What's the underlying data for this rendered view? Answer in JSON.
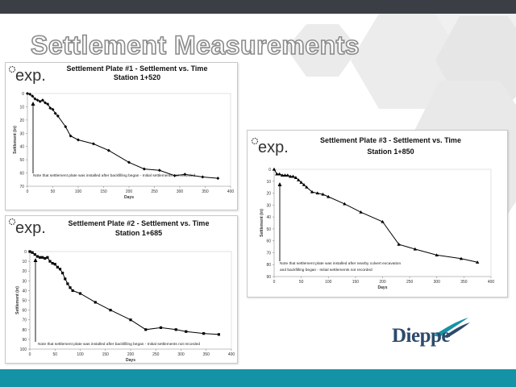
{
  "slide": {
    "title": "Settlement Measurements",
    "brand": "Dieppe",
    "colors": {
      "topbar": "#3b3f45",
      "bottombar": "#1593a6",
      "series": "#000000",
      "brand": "#2d4a6b"
    }
  },
  "chart_data": [
    {
      "type": "line",
      "id": "p1",
      "logo_text": "exp.",
      "title": "Settlement Plate #1 - Settlement vs. Time",
      "subtitle": "Station 1+520",
      "xlabel": "Days",
      "ylabel": "Settlement (in)",
      "xlim": [
        0,
        400
      ],
      "ylim": [
        0,
        70
      ],
      "y_inverted": true,
      "xticks": [
        0,
        50,
        100,
        150,
        200,
        250,
        300,
        350,
        400
      ],
      "yticks": [
        0,
        10,
        20,
        30,
        40,
        50,
        60,
        70
      ],
      "grid": false,
      "marker": "diamond",
      "annotation": [
        "Note that settlement plate was installed after backfilling began - Initial settlements not recorded"
      ],
      "series": [
        {
          "x": [
            0,
            5,
            10,
            15,
            20,
            25,
            30,
            35,
            40,
            45,
            50,
            55,
            60,
            75,
            85,
            100,
            130,
            160,
            200,
            230,
            260,
            290,
            310,
            345,
            375
          ],
          "y": [
            0,
            0.5,
            2,
            4,
            5,
            6,
            5,
            7,
            8,
            11,
            12,
            15,
            17,
            25,
            32,
            35,
            38,
            43,
            52,
            57,
            58,
            62,
            61,
            63,
            64
          ]
        }
      ]
    },
    {
      "type": "line",
      "id": "p2",
      "logo_text": "exp.",
      "title": "Settlement Plate #2 - Settlement vs. Time",
      "subtitle": "Station 1+685",
      "xlabel": "Days",
      "ylabel": "Settlement (in)",
      "xlim": [
        0,
        400
      ],
      "ylim": [
        0,
        100
      ],
      "y_inverted": true,
      "xticks": [
        0,
        50,
        100,
        150,
        200,
        250,
        300,
        350,
        400
      ],
      "yticks": [
        0,
        10,
        20,
        30,
        40,
        50,
        60,
        70,
        80,
        90,
        100
      ],
      "grid": false,
      "marker": "square",
      "annotation": [
        "Note that settlement plate was installed after backfilling began - Initial settlements not recorded"
      ],
      "series": [
        {
          "x": [
            0,
            5,
            10,
            15,
            20,
            25,
            30,
            35,
            40,
            45,
            50,
            55,
            60,
            65,
            70,
            75,
            80,
            85,
            100,
            130,
            160,
            200,
            230,
            260,
            290,
            310,
            345,
            375
          ],
          "y": [
            0,
            1,
            3,
            5,
            6,
            6,
            7,
            6,
            10,
            12,
            13,
            16,
            18,
            22,
            28,
            33,
            37,
            40,
            43,
            52,
            60,
            70,
            80,
            78,
            80,
            82,
            84,
            85
          ]
        }
      ]
    },
    {
      "type": "line",
      "id": "p3",
      "logo_text": "exp.",
      "title": "Settlement Plate #3 - Settlement vs. Time",
      "subtitle": "Station 1+850",
      "xlabel": "Days",
      "ylabel": "Settlement (in)",
      "xlim": [
        0,
        400
      ],
      "ylim": [
        0,
        90
      ],
      "y_inverted": true,
      "xticks": [
        0,
        50,
        100,
        150,
        200,
        250,
        300,
        350,
        400
      ],
      "yticks": [
        0,
        10,
        20,
        30,
        40,
        50,
        60,
        70,
        80,
        90
      ],
      "grid": false,
      "marker": "triangle",
      "annotation": [
        "Note that settlement plate was installed after nearby culvert excavation",
        "and backfilling began - Initial settlements not recorded"
      ],
      "series": [
        {
          "x": [
            0,
            5,
            10,
            15,
            20,
            25,
            30,
            35,
            40,
            45,
            50,
            55,
            60,
            70,
            80,
            90,
            100,
            130,
            160,
            200,
            230,
            260,
            300,
            345,
            375
          ],
          "y": [
            0,
            4,
            4,
            5,
            5,
            5,
            6,
            6,
            7,
            9,
            11,
            13,
            15,
            19,
            20,
            21,
            23,
            29,
            36,
            44,
            63,
            67,
            72,
            75,
            78
          ]
        }
      ]
    }
  ]
}
